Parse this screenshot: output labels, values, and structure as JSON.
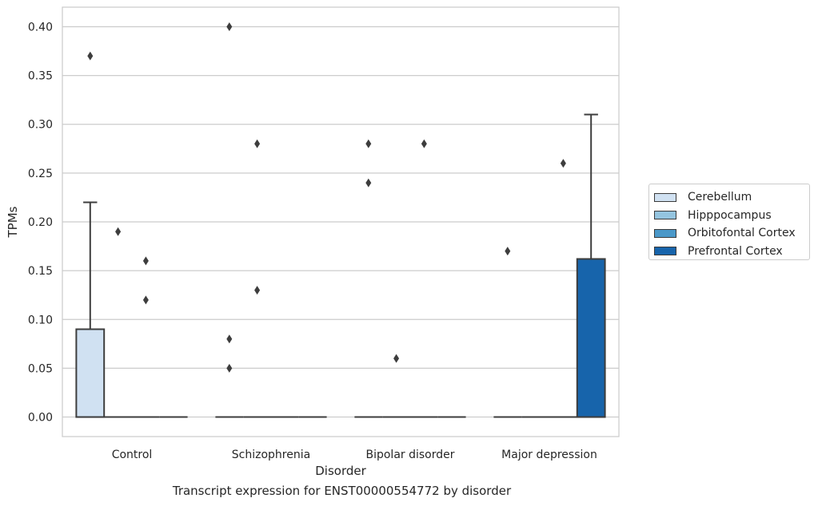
{
  "caption": "Transcript expression for ENST00000554772 by disorder",
  "chart_data": {
    "type": "box",
    "xlabel": "Disorder",
    "ylabel": "TPMs",
    "categories": [
      "Control",
      "Schizophrenia",
      "Bipolar disorder",
      "Major depression"
    ],
    "yticks": [
      "0.00",
      "0.05",
      "0.10",
      "0.15",
      "0.20",
      "0.25",
      "0.30",
      "0.35",
      "0.40"
    ],
    "ylim": [
      -0.02,
      0.42
    ],
    "grid": true,
    "legend_position": "right",
    "series": [
      {
        "name": "Cerebellum",
        "color": "#d0e1f2",
        "boxes": [
          {
            "q1": 0,
            "median": 0,
            "q3": 0.09,
            "whisker_low": 0,
            "whisker_high": 0.22,
            "outliers": [
              0.37
            ]
          },
          {
            "q1": 0,
            "median": 0,
            "q3": 0,
            "whisker_low": 0,
            "whisker_high": 0,
            "outliers": [
              0.4,
              0.08,
              0.05
            ]
          },
          {
            "q1": 0,
            "median": 0,
            "q3": 0,
            "whisker_low": 0,
            "whisker_high": 0,
            "outliers": [
              0.28,
              0.24
            ]
          },
          {
            "q1": 0,
            "median": 0,
            "q3": 0,
            "whisker_low": 0,
            "whisker_high": 0,
            "outliers": [
              0.17
            ]
          }
        ]
      },
      {
        "name": "Hipppocampus",
        "color": "#94c4df",
        "boxes": [
          {
            "q1": 0,
            "median": 0,
            "q3": 0,
            "whisker_low": 0,
            "whisker_high": 0,
            "outliers": [
              0.19
            ]
          },
          {
            "q1": 0,
            "median": 0,
            "q3": 0,
            "whisker_low": 0,
            "whisker_high": 0,
            "outliers": [
              0.28,
              0.13
            ]
          },
          {
            "q1": 0,
            "median": 0,
            "q3": 0,
            "whisker_low": 0,
            "whisker_high": 0,
            "outliers": [
              0.06
            ]
          },
          {
            "q1": 0,
            "median": 0,
            "q3": 0,
            "whisker_low": 0,
            "whisker_high": 0,
            "outliers": []
          }
        ]
      },
      {
        "name": "Orbitofontal Cortex",
        "color": "#4a98c9",
        "boxes": [
          {
            "q1": 0,
            "median": 0,
            "q3": 0,
            "whisker_low": 0,
            "whisker_high": 0,
            "outliers": [
              0.16,
              0.12
            ]
          },
          {
            "q1": 0,
            "median": 0,
            "q3": 0,
            "whisker_low": 0,
            "whisker_high": 0,
            "outliers": []
          },
          {
            "q1": 0,
            "median": 0,
            "q3": 0,
            "whisker_low": 0,
            "whisker_high": 0,
            "outliers": [
              0.28
            ]
          },
          {
            "q1": 0,
            "median": 0,
            "q3": 0,
            "whisker_low": 0,
            "whisker_high": 0,
            "outliers": [
              0.26
            ]
          }
        ]
      },
      {
        "name": "Prefrontal Cortex",
        "color": "#1764ab",
        "boxes": [
          {
            "q1": 0,
            "median": 0,
            "q3": 0,
            "whisker_low": 0,
            "whisker_high": 0,
            "outliers": []
          },
          {
            "q1": 0,
            "median": 0,
            "q3": 0,
            "whisker_low": 0,
            "whisker_high": 0,
            "outliers": []
          },
          {
            "q1": 0,
            "median": 0,
            "q3": 0,
            "whisker_low": 0,
            "whisker_high": 0,
            "outliers": []
          },
          {
            "q1": 0,
            "median": 0,
            "q3": 0.162,
            "whisker_low": 0,
            "whisker_high": 0.31,
            "outliers": []
          }
        ]
      }
    ]
  }
}
